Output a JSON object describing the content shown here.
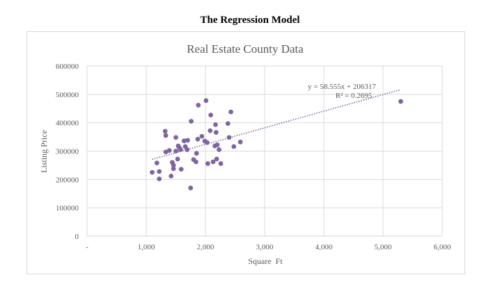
{
  "page": {
    "title": "The Regression Model"
  },
  "chart_data": {
    "type": "scatter",
    "title": "Real Estate County Data",
    "xlabel": "Square  Ft",
    "ylabel": "Listing Price",
    "xlim": [
      0,
      6000
    ],
    "ylim": [
      0,
      600000
    ],
    "x_ticks": [
      0,
      1000,
      2000,
      3000,
      4000,
      5000,
      6000
    ],
    "x_tick_labels": [
      "-",
      "1,000",
      "2,000",
      "3,000",
      "4,000",
      "5,000",
      "6,000"
    ],
    "y_ticks": [
      0,
      100000,
      200000,
      300000,
      400000,
      500000,
      600000
    ],
    "y_tick_labels": [
      "0",
      "100000",
      "200000",
      "300000",
      "400000",
      "500000",
      "600000"
    ],
    "grid": true,
    "legend": "none",
    "marker_color": "#8064a2",
    "trendline": {
      "type": "linear",
      "slope": 58.555,
      "intercept": 206317,
      "x_range": [
        1100,
        5300
      ],
      "equation": "y = 58.555x + 206317",
      "r_squared": "R² = 0.2695"
    },
    "series": [
      {
        "points": [
          [
            1100,
            225000
          ],
          [
            1180,
            258000
          ],
          [
            1220,
            228000
          ],
          [
            1220,
            202000
          ],
          [
            1320,
            370000
          ],
          [
            1330,
            355000
          ],
          [
            1330,
            297000
          ],
          [
            1390,
            302000
          ],
          [
            1420,
            212000
          ],
          [
            1440,
            260000
          ],
          [
            1460,
            250000
          ],
          [
            1460,
            238000
          ],
          [
            1500,
            348000
          ],
          [
            1500,
            300000
          ],
          [
            1530,
            272000
          ],
          [
            1540,
            318000
          ],
          [
            1560,
            312000
          ],
          [
            1580,
            305000
          ],
          [
            1590,
            236000
          ],
          [
            1640,
            336000
          ],
          [
            1660,
            316000
          ],
          [
            1690,
            305000
          ],
          [
            1700,
            338000
          ],
          [
            1750,
            170000
          ],
          [
            1760,
            405000
          ],
          [
            1800,
            270000
          ],
          [
            1840,
            262000
          ],
          [
            1850,
            292000
          ],
          [
            1870,
            342000
          ],
          [
            1880,
            462000
          ],
          [
            1940,
            352000
          ],
          [
            1990,
            335000
          ],
          [
            2010,
            478000
          ],
          [
            2030,
            330000
          ],
          [
            2040,
            256000
          ],
          [
            2080,
            372000
          ],
          [
            2090,
            427000
          ],
          [
            2130,
            262000
          ],
          [
            2160,
            318000
          ],
          [
            2170,
            393000
          ],
          [
            2180,
            366000
          ],
          [
            2190,
            272000
          ],
          [
            2200,
            322000
          ],
          [
            2230,
            305000
          ],
          [
            2260,
            256000
          ],
          [
            2380,
            397000
          ],
          [
            2400,
            348000
          ],
          [
            2430,
            438000
          ],
          [
            2480,
            316000
          ],
          [
            2590,
            332000
          ],
          [
            5300,
            475000
          ]
        ]
      }
    ]
  }
}
